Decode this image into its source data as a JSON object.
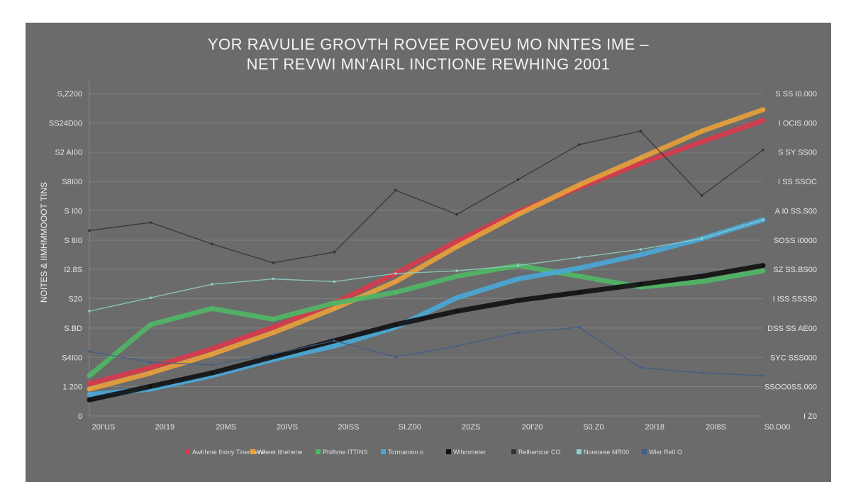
{
  "chart_data": {
    "type": "line",
    "title": "YOR RAVULIE GROVTH ROVEE ROVEU MO NNTES IME –",
    "subtitle": "NET REVWI MN'AIRL INCTIONE REWHING 2001",
    "ylabel": "NOITES & IIMHMMOOOT TINS",
    "xlabel": "",
    "x_ticks": [
      "20I'US",
      "20I19",
      "20MS",
      "20IVS",
      "20ISS",
      "SI.Z00",
      "20ZS",
      "20I'20",
      "S0.Z0",
      "20I18",
      "20I8S",
      "S0.D00"
    ],
    "y_ticks_left": [
      "S,Z200",
      "SS24D00",
      "S2 AI00",
      "S8I00",
      "S I00",
      "S 8I0",
      "I2.8S",
      "S20",
      "S.BD",
      "S4I00",
      "1 200",
      "0"
    ],
    "y_ticks_right": [
      "S SS I0.000",
      "I OCIS.000",
      "S SY SS00",
      "I SS SSOC",
      "A I0 SS.S00",
      "SOSS I0000",
      "SZ SS.BS00",
      "I ISS SSSS0",
      "DSS SS AE00",
      "SYC SSS000",
      "SSOO0SS.000",
      "I Z0"
    ],
    "legend_position": "bottom",
    "legend": [
      "Awhhme Ihony Tinencene",
      "Wheet Ithehene",
      "Philhme ITTINS",
      "Tormamon o",
      "Wihmmeter",
      "Relhemcor CO",
      "Noreoree MR00",
      "Wier Re0 O"
    ],
    "grid": true,
    "ylim": [
      0,
      12
    ],
    "series": [
      {
        "color": "#d93a4c",
        "values": [
          1.2,
          1.8,
          2.5,
          3.3,
          4.2,
          5.3,
          6.5,
          7.6,
          8.5,
          9.4,
          10.2,
          11.0
        ]
      },
      {
        "color": "#e9a13b",
        "values": [
          1.0,
          1.6,
          2.3,
          3.1,
          4.0,
          5.0,
          6.3,
          7.5,
          8.6,
          9.6,
          10.6,
          11.4
        ]
      },
      {
        "color": "#4fb865",
        "values": [
          1.5,
          3.4,
          4.0,
          3.6,
          4.2,
          4.6,
          5.2,
          5.6,
          5.2,
          4.8,
          5.0,
          5.4
        ]
      },
      {
        "color": "#4aa8d8",
        "values": [
          0.8,
          1.0,
          1.5,
          2.1,
          2.6,
          3.3,
          4.4,
          5.1,
          5.5,
          6.0,
          6.6,
          7.3
        ]
      },
      {
        "color": "#111111",
        "values": [
          0.6,
          1.1,
          1.6,
          2.2,
          2.8,
          3.4,
          3.9,
          4.3,
          4.6,
          4.9,
          5.2,
          5.6
        ]
      },
      {
        "color": "#333333",
        "values": [
          6.9,
          7.2,
          6.4,
          5.7,
          6.1,
          8.4,
          7.5,
          8.8,
          10.1,
          10.6,
          8.2,
          9.9
        ]
      },
      {
        "color": "#8fd0c8",
        "values": [
          3.9,
          4.4,
          4.9,
          5.1,
          5.0,
          5.3,
          5.4,
          5.6,
          5.9,
          6.2,
          6.6,
          7.3
        ]
      },
      {
        "color": "#3d5e88",
        "values": [
          2.4,
          2.0,
          1.9,
          2.3,
          2.8,
          2.2,
          2.6,
          3.1,
          3.3,
          1.8,
          1.6,
          1.5
        ]
      }
    ]
  }
}
